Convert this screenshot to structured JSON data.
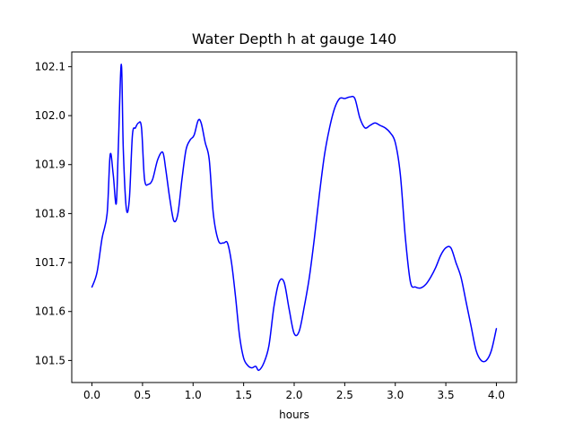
{
  "chart_data": {
    "type": "line",
    "title": "Water Depth h at gauge 140",
    "xlabel": "hours",
    "ylabel": "",
    "xlim": [
      -0.2,
      4.2
    ],
    "ylim": [
      101.455,
      102.13
    ],
    "xticks": [
      0.0,
      0.5,
      1.0,
      1.5,
      2.0,
      2.5,
      3.0,
      3.5,
      4.0
    ],
    "xtick_labels": [
      "0.0",
      "0.5",
      "1.0",
      "1.5",
      "2.0",
      "2.5",
      "3.0",
      "3.5",
      "4.0"
    ],
    "yticks": [
      101.5,
      101.6,
      101.7,
      101.8,
      101.9,
      102.0,
      102.1
    ],
    "ytick_labels": [
      "101.5",
      "101.6",
      "101.7",
      "101.8",
      "101.9",
      "102.0",
      "102.1"
    ],
    "grid": false,
    "series": [
      {
        "color": "#0000ff",
        "x": [
          0.0,
          0.05,
          0.1,
          0.15,
          0.18,
          0.21,
          0.24,
          0.26,
          0.29,
          0.31,
          0.34,
          0.37,
          0.4,
          0.43,
          0.46,
          0.49,
          0.52,
          0.56,
          0.6,
          0.65,
          0.7,
          0.73,
          0.77,
          0.81,
          0.85,
          0.89,
          0.93,
          0.97,
          1.01,
          1.05,
          1.08,
          1.12,
          1.16,
          1.2,
          1.25,
          1.3,
          1.34,
          1.38,
          1.42,
          1.46,
          1.5,
          1.54,
          1.58,
          1.62,
          1.65,
          1.7,
          1.75,
          1.8,
          1.85,
          1.9,
          1.95,
          2.0,
          2.05,
          2.1,
          2.15,
          2.2,
          2.25,
          2.3,
          2.35,
          2.4,
          2.45,
          2.5,
          2.55,
          2.6,
          2.65,
          2.7,
          2.75,
          2.8,
          2.85,
          2.9,
          2.95,
          3.0,
          3.05,
          3.1,
          3.15,
          3.2,
          3.25,
          3.3,
          3.35,
          3.4,
          3.45,
          3.5,
          3.55,
          3.6,
          3.65,
          3.7,
          3.75,
          3.8,
          3.85,
          3.9,
          3.95,
          4.0
        ],
        "y": [
          101.65,
          101.68,
          101.75,
          101.8,
          101.92,
          101.88,
          101.82,
          101.93,
          102.105,
          101.93,
          101.81,
          101.83,
          101.96,
          101.975,
          101.985,
          101.975,
          101.87,
          101.86,
          101.87,
          101.91,
          101.925,
          101.89,
          101.83,
          101.785,
          101.8,
          101.87,
          101.93,
          101.95,
          101.96,
          101.99,
          101.985,
          101.945,
          101.91,
          101.8,
          101.745,
          101.74,
          101.74,
          101.7,
          101.63,
          101.55,
          101.505,
          101.49,
          101.485,
          101.488,
          101.48,
          101.495,
          101.53,
          101.61,
          101.66,
          101.66,
          101.605,
          101.555,
          101.56,
          101.61,
          101.67,
          101.75,
          101.84,
          101.92,
          101.975,
          102.015,
          102.035,
          102.035,
          102.038,
          102.035,
          101.995,
          101.975,
          101.98,
          101.985,
          101.98,
          101.975,
          101.965,
          101.945,
          101.88,
          101.75,
          101.66,
          101.65,
          101.648,
          101.655,
          101.67,
          101.69,
          101.715,
          101.73,
          101.73,
          101.7,
          101.67,
          101.62,
          101.57,
          101.52,
          101.5,
          101.5,
          101.52,
          101.565
        ]
      }
    ]
  }
}
